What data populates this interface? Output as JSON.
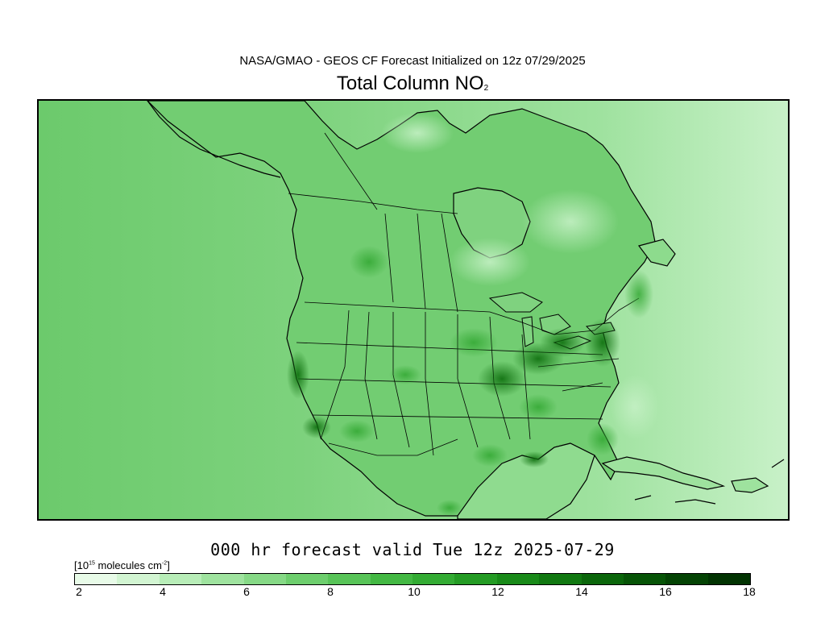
{
  "header": {
    "subtitle": "NASA/GMAO - GEOS CF Forecast Initialized on 12z 07/29/2025",
    "title_main": "Total Column NO",
    "title_sub": "2"
  },
  "footer": {
    "valid_time": "000 hr forecast valid Tue 12z 2025-07-29"
  },
  "colorbar": {
    "units_prefix": "[10",
    "units_exp": "15",
    "units_mid": " molecules cm",
    "units_exp2": "-2",
    "units_suffix": "]",
    "min": 2,
    "max": 18,
    "ticks": [
      "2",
      "4",
      "6",
      "8",
      "10",
      "12",
      "14",
      "16",
      "18"
    ],
    "colors": [
      "#e8fbe8",
      "#d2f5d2",
      "#b8edb8",
      "#9fe39f",
      "#86d986",
      "#6dce6d",
      "#58c458",
      "#43b843",
      "#33ab33",
      "#249b24",
      "#198a19",
      "#117811",
      "#0b660b",
      "#075407",
      "#044304",
      "#023302"
    ]
  },
  "map": {
    "ocean_color": "#88d788",
    "land_color": "#6fcc6f",
    "east_ocean_color": "#a9e6a9",
    "hotspot_color": "#1f8f1f"
  }
}
